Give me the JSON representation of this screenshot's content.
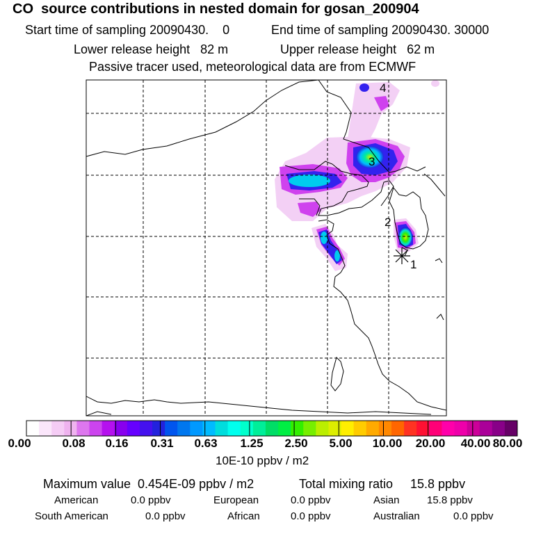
{
  "header": {
    "title": "CO  source contributions in nested domain for gosan_200904",
    "start_label": "Start time of sampling 20090430.    0",
    "end_label": "End time of sampling 20090430. 30000",
    "lower_label": "Lower release height   82 m",
    "upper_label": "Upper release height   62 m",
    "passive_label": "Passive tracer used, meteorological data are from ECMWF"
  },
  "map": {
    "markers": [
      {
        "label": "1"
      },
      {
        "label": "2"
      },
      {
        "label": "3"
      },
      {
        "label": "4"
      }
    ],
    "receptor": "star-icon"
  },
  "colorbar": {
    "ticks": [
      "0.00",
      "0.08",
      "0.16",
      "0.31",
      "0.63",
      "1.25",
      "2.50",
      "5.00",
      "10.00",
      "20.00",
      "40.00",
      "80.00"
    ],
    "unit": "10E-10 ppbv / m2",
    "colors": [
      "#ffffff",
      "#fbe6fb",
      "#f5ccf5",
      "#efb3ef",
      "#dd77ee",
      "#cc44ee",
      "#b511ee",
      "#8800ee",
      "#6600ff",
      "#4411ee",
      "#2222dd",
      "#0055ee",
      "#0077ee",
      "#0099ff",
      "#00bbff",
      "#00dddd",
      "#00ffee",
      "#00ffcc",
      "#00ee99",
      "#00dd66",
      "#00ee44",
      "#33ee00",
      "#77ee00",
      "#bbee00",
      "#ddee00",
      "#ffee00",
      "#ffcc00",
      "#ffaa00",
      "#ff8800",
      "#ff6600",
      "#ff3322",
      "#ff1133",
      "#ff0077",
      "#ff00aa",
      "#ee00aa",
      "#cc0099",
      "#aa0099",
      "#880088",
      "#660066"
    ]
  },
  "summary": {
    "max_label": "Maximum value  0.454E-09 ppbv / m2",
    "total_label": "Total mixing ratio",
    "total_value": "15.8 ppbv",
    "regions": [
      {
        "name": "American",
        "value": "0.0 ppbv"
      },
      {
        "name": "European",
        "value": "0.0 ppbv"
      },
      {
        "name": "Asian",
        "value": "15.8 ppbv"
      },
      {
        "name": "South American",
        "value": "0.0 ppbv"
      },
      {
        "name": "African",
        "value": "0.0 ppbv"
      },
      {
        "name": "Australian",
        "value": "0.0 ppbv"
      }
    ]
  }
}
